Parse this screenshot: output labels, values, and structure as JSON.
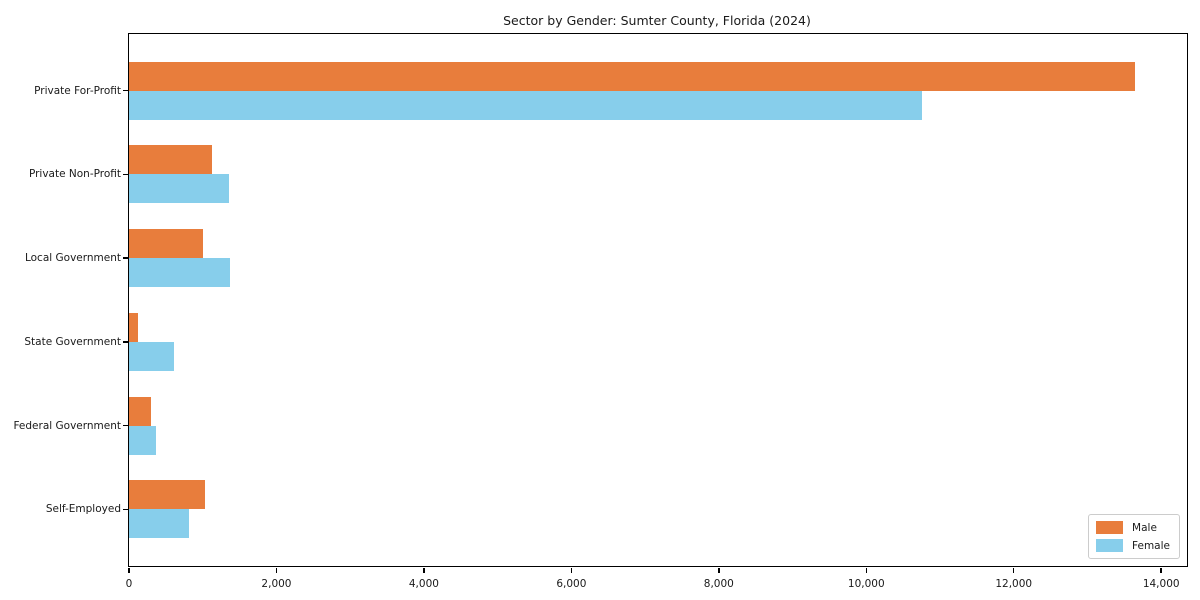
{
  "chart_data": {
    "type": "bar",
    "orientation": "horizontal",
    "title": "Sector by Gender: Sumter County, Florida (2024)",
    "categories": [
      "Private For-Profit",
      "Private Non-Profit",
      "Local Government",
      "State Government",
      "Federal Government",
      "Self-Employed"
    ],
    "series": [
      {
        "name": "Male",
        "color": "#e87d3c",
        "values": [
          13650,
          1120,
          1000,
          125,
          300,
          1030
        ]
      },
      {
        "name": "Female",
        "color": "#87ceeb",
        "values": [
          10760,
          1350,
          1370,
          610,
          365,
          810
        ]
      }
    ],
    "xlim": [
      0,
      14350
    ],
    "x_ticks": [
      0,
      2000,
      4000,
      6000,
      8000,
      10000,
      12000,
      14000
    ],
    "x_tick_labels": [
      "0",
      "2,000",
      "4,000",
      "6,000",
      "8,000",
      "10,000",
      "12,000",
      "14,000"
    ],
    "ylabel": "",
    "xlabel": "",
    "grid": false,
    "legend": {
      "position": "lower right"
    }
  }
}
